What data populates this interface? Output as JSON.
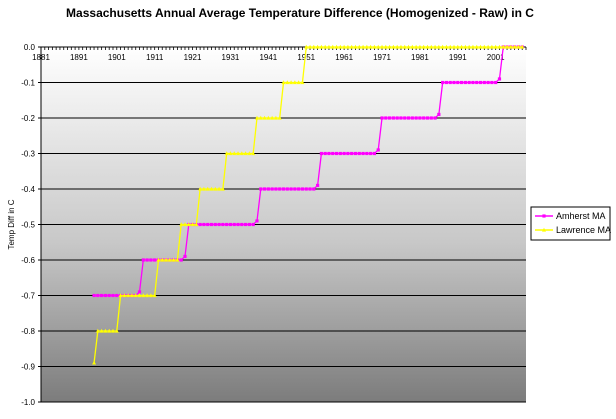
{
  "chart_data": {
    "type": "line",
    "title": "Massachusetts Annual Average Temperature Difference (Homogenized - Raw) in C",
    "xlabel": "",
    "ylabel": "Temp Diff in C",
    "x_ticks": [
      "1881",
      "1891",
      "1901",
      "1911",
      "1921",
      "1931",
      "1941",
      "1951",
      "1961",
      "1971",
      "1981",
      "1991",
      "2001"
    ],
    "y_ticks": [
      "0.0",
      "-0.1",
      "-0.2",
      "-0.3",
      "-0.4",
      "-0.5",
      "-0.6",
      "-0.7",
      "-0.8",
      "-0.9",
      "-1.0"
    ],
    "xlim": [
      1881,
      2009
    ],
    "ylim": [
      -1.0,
      0.0
    ],
    "grid": true,
    "legend_position": "right",
    "series": [
      {
        "name": "Amherst MA",
        "color": "#ff00ff",
        "marker": "square",
        "x_range": [
          1895,
          2008
        ],
        "steps": [
          {
            "from": 1895,
            "to": 1907,
            "value": -0.7
          },
          {
            "from": 1908,
            "to": 1919,
            "value": -0.6
          },
          {
            "from": 1920,
            "to": 1938,
            "value": -0.5
          },
          {
            "from": 1939,
            "to": 1954,
            "value": -0.4
          },
          {
            "from": 1955,
            "to": 1970,
            "value": -0.3
          },
          {
            "from": 1971,
            "to": 1986,
            "value": -0.2
          },
          {
            "from": 1987,
            "to": 2002,
            "value": -0.1
          },
          {
            "from": 2003,
            "to": 2008,
            "value": 0.0
          }
        ],
        "transition_points": [
          {
            "x": 1907,
            "y": -0.69
          },
          {
            "x": 1919,
            "y": -0.59
          },
          {
            "x": 1938,
            "y": -0.49
          },
          {
            "x": 1954,
            "y": -0.39
          },
          {
            "x": 1970,
            "y": -0.29
          },
          {
            "x": 1986,
            "y": -0.19
          },
          {
            "x": 2002,
            "y": -0.09
          }
        ]
      },
      {
        "name": "Lawrence MA",
        "color": "#ffff00",
        "marker": "triangle",
        "x_range": [
          1895,
          2008
        ],
        "steps": [
          {
            "from": 1896,
            "to": 1901,
            "value": -0.8
          },
          {
            "from": 1902,
            "to": 1911,
            "value": -0.7
          },
          {
            "from": 1912,
            "to": 1917,
            "value": -0.6
          },
          {
            "from": 1918,
            "to": 1922,
            "value": -0.5
          },
          {
            "from": 1923,
            "to": 1929,
            "value": -0.4
          },
          {
            "from": 1930,
            "to": 1937,
            "value": -0.3
          },
          {
            "from": 1938,
            "to": 1944,
            "value": -0.2
          },
          {
            "from": 1945,
            "to": 1950,
            "value": -0.1
          },
          {
            "from": 1951,
            "to": 2008,
            "value": 0.0
          }
        ],
        "transition_points": [
          {
            "x": 1895,
            "y": -0.89
          }
        ]
      }
    ]
  }
}
